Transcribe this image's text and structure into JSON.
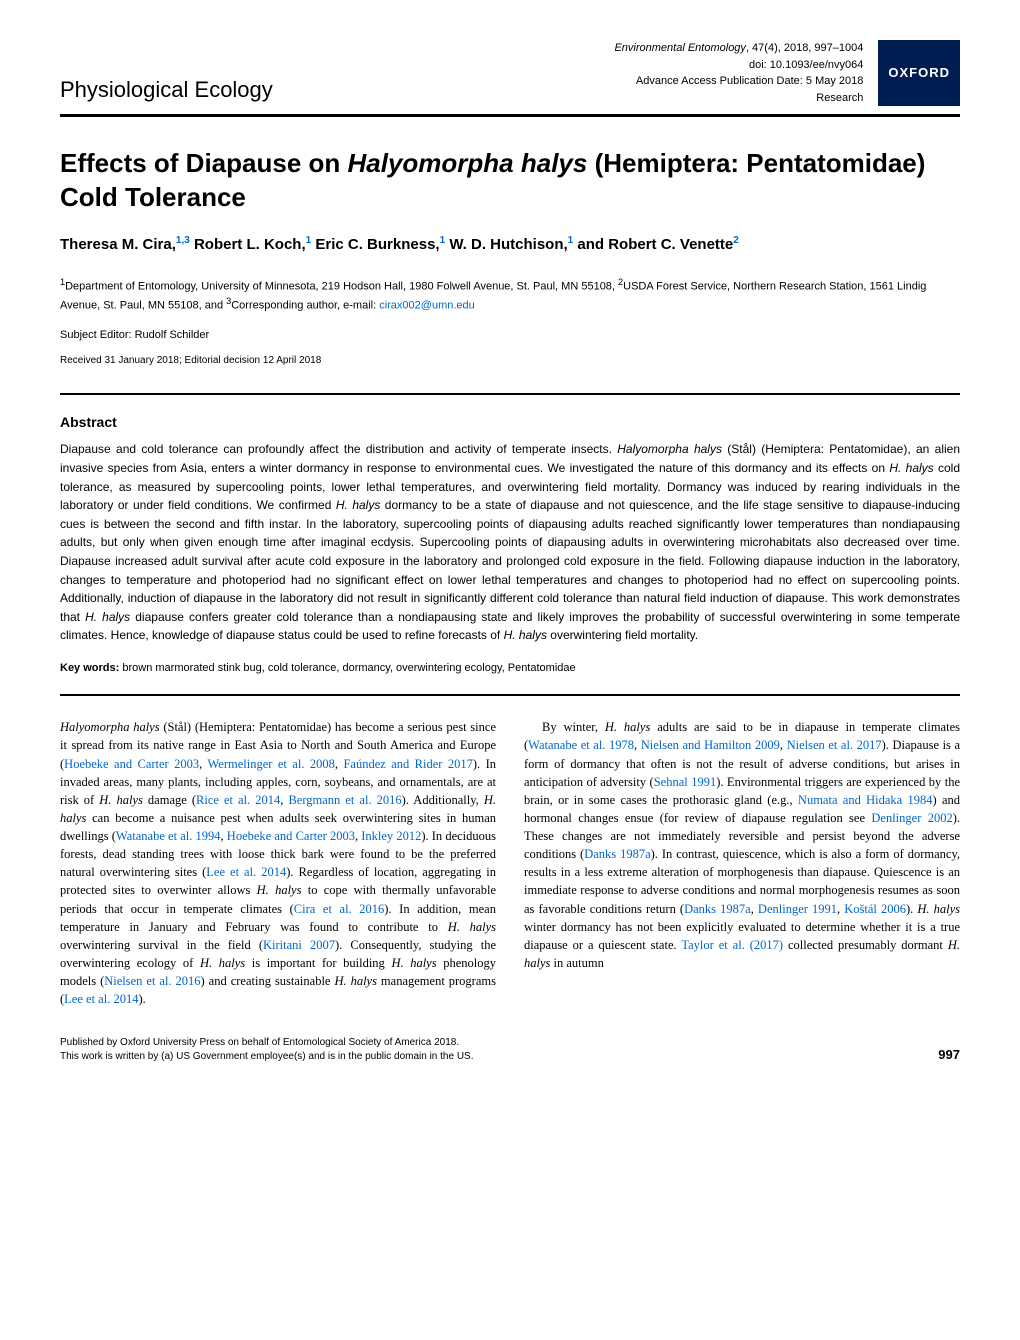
{
  "header": {
    "section_label": "Physiological Ecology",
    "journal_name": "Environmental Entomology",
    "citation": ", 47(4), 2018, 997–1004",
    "doi": "doi: 10.1093/ee/nvy064",
    "pub_date": "Advance Access Publication Date: 5 May 2018",
    "article_type": "Research",
    "publisher_badge": "OXFORD"
  },
  "title_pre": "Effects of Diapause on ",
  "title_species": "Halyomorpha halys",
  "title_post": " (Hemiptera: Pentatomidae) Cold Tolerance",
  "authors_html": "Theresa M. Cira,<sup>1,3</sup> Robert L. Koch,<sup>1</sup> Eric C. Burkness,<sup>1</sup> W. D. Hutchison,<sup>1</sup> and Robert C. Venette<sup>2</sup>",
  "affiliations_html": "<sup>1</sup>Department of Entomology, University of Minnesota, 219 Hodson Hall, 1980 Folwell Avenue, St. Paul, MN 55108, <sup>2</sup>USDA Forest Service, Northern Research Station, 1561 Lindig Avenue, St. Paul, MN 55108, and <sup>3</sup>Corresponding author, e-mail: <a>cirax002@umn.edu</a>",
  "editor": "Subject Editor: Rudolf Schilder",
  "dates": "Received 31 January 2018; Editorial decision 12 April 2018",
  "abstract_heading": "Abstract",
  "abstract_html": "Diapause and cold tolerance can profoundly affect the distribution and activity of temperate insects. <span class=\"italic\">Halyomorpha halys</span> (Stål) (Hemiptera: Pentatomidae), an alien invasive species from Asia, enters a winter dormancy in response to environmental cues. We investigated the nature of this dormancy and its effects on <span class=\"italic\">H. halys</span> cold tolerance, as measured by supercooling points, lower lethal temperatures, and overwintering field mortality. Dormancy was induced by rearing individuals in the laboratory or under field conditions. We confirmed <span class=\"italic\">H. halys</span> dormancy to be a state of diapause and not quiescence, and the life stage sensitive to diapause-inducing cues is between the second and fifth instar. In the laboratory, supercooling points of diapausing adults reached significantly lower temperatures than nondiapausing adults, but only when given enough time after imaginal ecdysis. Supercooling points of diapausing adults in overwintering microhabitats also decreased over time. Diapause increased adult survival after acute cold exposure in the laboratory and prolonged cold exposure in the field. Following diapause induction in the laboratory, changes to temperature and photoperiod had no significant effect on lower lethal temperatures and changes to photoperiod had no effect on supercooling points. Additionally, induction of diapause in the laboratory did not result in significantly different cold tolerance than natural field induction of diapause. This work demonstrates that <span class=\"italic\">H. halys</span> diapause confers greater cold tolerance than a nondiapausing state and likely improves the probability of successful overwintering in some temperate climates. Hence, knowledge of diapause status could be used to refine forecasts of <span class=\"italic\">H. halys</span> overwintering field mortality.",
  "keywords_label": "Key words:",
  "keywords_text": "  brown marmorated stink bug, cold tolerance, dormancy, overwintering ecology, Pentatomidae",
  "body": {
    "p1_html": "<span class=\"italic\">Halyomorpha halys</span> (Stål) (Hemiptera: Pentatomidae) has become a serious pest since it spread from its native range in East Asia to North and South America and Europe (<span class=\"ref\">Hoebeke and Carter 2003</span>, <span class=\"ref\">Wermelinger et al. 2008</span>, <span class=\"ref\">Faúndez and Rider 2017</span>). In invaded areas, many plants, including apples, corn, soybeans, and ornamentals, are at risk of <span class=\"italic\">H. halys</span> damage (<span class=\"ref\">Rice et al. 2014</span>, <span class=\"ref\">Bergmann et al. 2016</span>). Additionally, <span class=\"italic\">H. halys</span> can become a nuisance pest when adults seek overwintering sites in human dwellings (<span class=\"ref\">Watanabe et al. 1994</span>, <span class=\"ref\">Hoebeke and Carter 2003</span>, <span class=\"ref\">Inkley 2012</span>). In deciduous forests, dead standing trees with loose thick bark were found to be the preferred natural overwintering sites (<span class=\"ref\">Lee et al. 2014</span>). Regardless of location, aggregating in protected sites to overwinter allows <span class=\"italic\">H. halys</span> to cope with thermally unfavorable periods that occur in temperate climates (<span class=\"ref\">Cira et al. 2016</span>). In addition, mean temperature in January and February was found to contribute to <span class=\"italic\">H. halys</span> overwintering survival in the field (<span class=\"ref\">Kiritani 2007</span>). Consequently, studying the overwintering ecology of <span class=\"italic\">H. halys</span> is important for building <span class=\"italic\">H. halys</span> phenology models (<span class=\"ref\">Nielsen et al. 2016</span>) and creating sustainable <span class=\"italic\">H. halys</span> management programs (<span class=\"ref\">Lee et al. 2014</span>).",
    "p2_html": "By winter, <span class=\"italic\">H. halys</span> adults are said to be in diapause in temperate climates (<span class=\"ref\">Watanabe et al. 1978</span>, <span class=\"ref\">Nielsen and Hamilton 2009</span>, <span class=\"ref\">Nielsen et al. 2017</span>). Diapause is a form of dormancy that often is not the result of adverse conditions, but arises in anticipation of adversity (<span class=\"ref\">Sehnal 1991</span>). Environmental triggers are experienced by the brain, or in some cases the prothorasic gland (e.g., <span class=\"ref\">Numata and Hidaka 1984</span>) and hormonal changes ensue (for review of diapause regulation see <span class=\"ref\">Denlinger 2002</span>). These changes are not immediately reversible and persist beyond the adverse conditions (<span class=\"ref\">Danks 1987a</span>). In contrast, quiescence, which is also a form of dormancy, results in a less extreme alteration of morphogenesis than diapause. Quiescence is an immediate response to adverse conditions and normal morphogenesis resumes as soon as favorable conditions return (<span class=\"ref\">Danks 1987a</span>, <span class=\"ref\">Denlinger 1991</span>, <span class=\"ref\">Koštál 2006</span>). <span class=\"italic\">H. halys</span> winter dormancy has not been explicitly evaluated to determine whether it is a true diapause or a quiescent state. <span class=\"ref\">Taylor et al. (2017)</span> collected presumably dormant <span class=\"italic\">H. halys</span> in autumn"
  },
  "footer": {
    "line1": "Published by Oxford University Press on behalf of Entomological Society of America 2018.",
    "line2": "This work is written by (a) US Government employee(s) and is in the public domain in the US.",
    "page_number": "997"
  },
  "colors": {
    "oxford_bg": "#001d52",
    "link": "#0066cc",
    "text": "#000000",
    "bg": "#ffffff"
  },
  "typography": {
    "title_fontsize": 26,
    "author_fontsize": 15,
    "abstract_fontsize": 12,
    "body_fontsize": 12.5,
    "meta_fontsize": 11
  }
}
